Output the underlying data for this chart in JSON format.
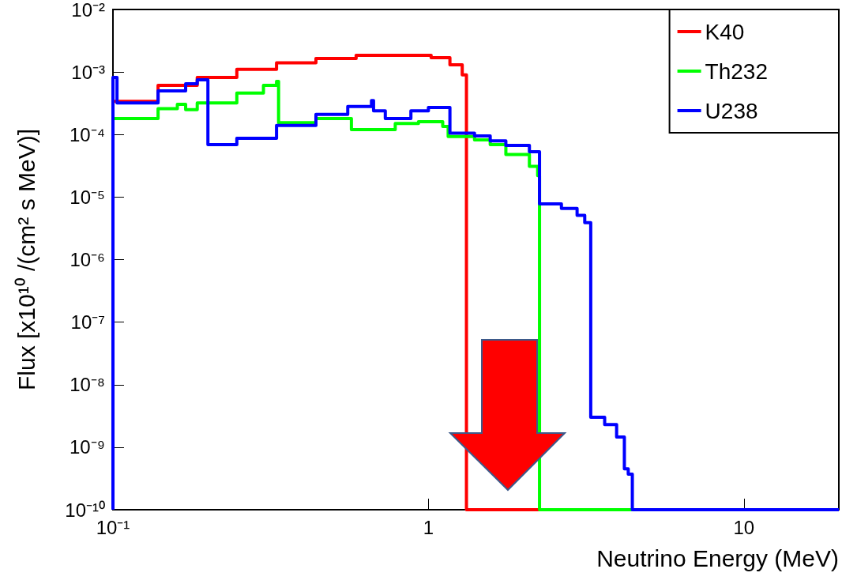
{
  "chart_data": {
    "type": "step",
    "xlabel": "Neutrino Energy (MeV)",
    "ylabel": "Flux [x10¹⁰ /(cm² s MeV)]",
    "log": "xy",
    "marker": "none",
    "legend": "top right",
    "xlim": [
      0.1,
      20
    ],
    "xticks": [
      {
        "value": 0.1,
        "label": "10⁻¹"
      },
      1,
      10
    ],
    "ylim": [
      1e-10,
      0.01
    ],
    "yticks": [
      {
        "value": 1e-10,
        "label": "10⁻¹⁰"
      },
      {
        "value": 1e-09,
        "label": "10⁻⁹"
      },
      {
        "value": 1e-08,
        "label": "10⁻⁸"
      },
      {
        "value": 1e-07,
        "label": "10⁻⁷"
      },
      {
        "value": 1e-06,
        "label": "10⁻⁶"
      },
      {
        "value": 1e-05,
        "label": "10⁻⁵"
      },
      {
        "value": 0.0001,
        "label": "10⁻⁴"
      },
      {
        "value": 0.001,
        "label": "10⁻³"
      },
      {
        "value": 0.01,
        "label": "10⁻²"
      }
    ],
    "series": [
      {
        "name": "K40",
        "color": "#ff0000",
        "x": [
          0.1,
          0.139,
          0.185,
          0.247,
          0.33,
          0.44,
          0.59,
          0.785,
          1.02,
          1.17,
          1.28,
          1.32,
          2.25
        ],
        "values": [
          0.00034,
          0.00061,
          0.00082,
          0.0011,
          0.0014,
          0.00165,
          0.00185,
          0.00185,
          0.0017,
          0.0013,
          0.0009,
          1e-10,
          1e-10
        ]
      },
      {
        "name": "Th232",
        "color": "#00ff00",
        "x": [
          0.1,
          0.139,
          0.16,
          0.17,
          0.185,
          0.247,
          0.3,
          0.33,
          0.335,
          0.44,
          0.57,
          0.785,
          0.93,
          1.11,
          1.155,
          1.4,
          1.57,
          1.76,
          2.09,
          2.22,
          2.25,
          4.43
        ],
        "values": [
          0.00018,
          0.00026,
          0.000305,
          0.00025,
          0.00032,
          0.00046,
          0.00061,
          0.00071,
          0.000155,
          0.00018,
          0.00012,
          0.00015,
          0.00016,
          0.000135,
          9.3e-05,
          8.2e-05,
          6.9e-05,
          4.8e-05,
          3.1e-05,
          2.2e-05,
          1e-10,
          1e-10
        ]
      },
      {
        "name": "U238",
        "color": "#0000ff",
        "x": [
          0.1,
          0.1,
          0.103,
          0.139,
          0.17,
          0.185,
          0.2,
          0.247,
          0.33,
          0.44,
          0.555,
          0.66,
          0.67,
          0.73,
          0.88,
          1.0,
          1.17,
          1.4,
          1.57,
          1.76,
          2.09,
          2.25,
          2.64,
          2.96,
          3.13,
          3.27,
          3.62,
          3.95,
          4.18,
          4.3,
          4.43,
          20
        ],
        "values": [
          1e-10,
          0.00082,
          0.00032,
          0.0005,
          0.00065,
          0.00075,
          6.9e-05,
          8.7e-05,
          0.00014,
          0.00021,
          0.00028,
          0.00035,
          0.00024,
          0.00018,
          0.00024,
          0.00027,
          0.000105,
          9.5e-05,
          7.9e-05,
          6.7e-05,
          5.3e-05,
          7.8e-06,
          6.6e-06,
          5.1e-06,
          3.9e-06,
          3e-09,
          2.3e-09,
          1.45e-09,
          4.5e-10,
          3.7e-10,
          1e-10,
          1e-10
        ]
      }
    ]
  }
}
